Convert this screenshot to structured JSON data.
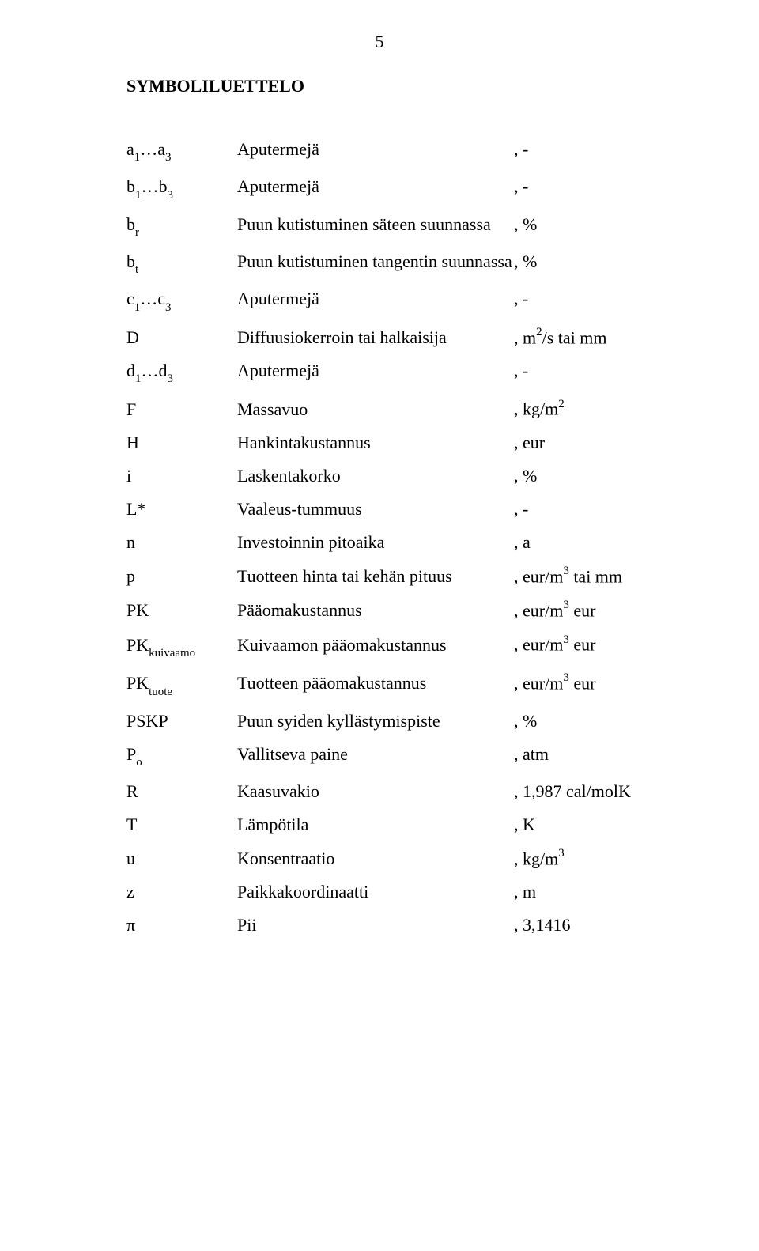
{
  "page_number": "5",
  "heading": "SYMBOLILUETTELO",
  "rows": [
    {
      "sym_pre": "a",
      "sym_sub1": "1",
      "sym_mid": "…a",
      "sym_sub2": "3",
      "sym_post": "",
      "desc": "Aputermejä",
      "unit_pre": ", -",
      "unit_sup": "",
      "unit_post": ""
    },
    {
      "sym_pre": "b",
      "sym_sub1": "1",
      "sym_mid": "…b",
      "sym_sub2": "3",
      "sym_post": "",
      "desc": "Aputermejä",
      "unit_pre": ", -",
      "unit_sup": "",
      "unit_post": ""
    },
    {
      "sym_pre": "b",
      "sym_sub1": "r",
      "sym_mid": "",
      "sym_sub2": "",
      "sym_post": "",
      "desc": "Puun kutistuminen säteen suunnassa",
      "unit_pre": ", %",
      "unit_sup": "",
      "unit_post": ""
    },
    {
      "sym_pre": "b",
      "sym_sub1": "t",
      "sym_mid": "",
      "sym_sub2": "",
      "sym_post": "",
      "desc": "Puun kutistuminen tangentin suunnassa",
      "unit_pre": ", %",
      "unit_sup": "",
      "unit_post": ""
    },
    {
      "sym_pre": "c",
      "sym_sub1": "1",
      "sym_mid": "…c",
      "sym_sub2": "3",
      "sym_post": "",
      "desc": "Aputermejä",
      "unit_pre": ", -",
      "unit_sup": "",
      "unit_post": ""
    },
    {
      "sym_pre": "D",
      "sym_sub1": "",
      "sym_mid": "",
      "sym_sub2": "",
      "sym_post": "",
      "desc": "Diffuusiokerroin tai halkaisija",
      "unit_pre": ", m",
      "unit_sup": "2",
      "unit_post": "/s tai mm"
    },
    {
      "sym_pre": "d",
      "sym_sub1": "1",
      "sym_mid": "…d",
      "sym_sub2": "3",
      "sym_post": "",
      "desc": "Aputermejä",
      "unit_pre": ", -",
      "unit_sup": "",
      "unit_post": ""
    },
    {
      "sym_pre": "F",
      "sym_sub1": "",
      "sym_mid": "",
      "sym_sub2": "",
      "sym_post": "",
      "desc": "Massavuo",
      "unit_pre": ", kg/m",
      "unit_sup": "2",
      "unit_post": ""
    },
    {
      "sym_pre": "H",
      "sym_sub1": "",
      "sym_mid": "",
      "sym_sub2": "",
      "sym_post": "",
      "desc": "Hankintakustannus",
      "unit_pre": ", eur",
      "unit_sup": "",
      "unit_post": ""
    },
    {
      "sym_pre": "i",
      "sym_sub1": "",
      "sym_mid": "",
      "sym_sub2": "",
      "sym_post": "",
      "desc": "Laskentakorko",
      "unit_pre": ", %",
      "unit_sup": "",
      "unit_post": ""
    },
    {
      "sym_pre": "L*",
      "sym_sub1": "",
      "sym_mid": "",
      "sym_sub2": "",
      "sym_post": "",
      "desc": "Vaaleus-tummuus",
      "unit_pre": ", -",
      "unit_sup": "",
      "unit_post": ""
    },
    {
      "sym_pre": "n",
      "sym_sub1": "",
      "sym_mid": "",
      "sym_sub2": "",
      "sym_post": "",
      "desc": "Investoinnin pitoaika",
      "unit_pre": ", a",
      "unit_sup": "",
      "unit_post": ""
    },
    {
      "sym_pre": "p",
      "sym_sub1": "",
      "sym_mid": "",
      "sym_sub2": "",
      "sym_post": "",
      "desc": "Tuotteen hinta tai kehän pituus",
      "unit_pre": ", eur/m",
      "unit_sup": "3",
      "unit_post": " tai mm"
    },
    {
      "sym_pre": "PK",
      "sym_sub1": "",
      "sym_mid": "",
      "sym_sub2": "",
      "sym_post": "",
      "desc": "Pääomakustannus",
      "unit_pre": ", eur/m",
      "unit_sup": "3",
      "unit_post": " eur"
    },
    {
      "sym_pre": "PK",
      "sym_sub1": "kuivaamo",
      "sym_mid": "",
      "sym_sub2": "",
      "sym_post": "",
      "desc": "Kuivaamon pääomakustannus",
      "unit_pre": ", eur/m",
      "unit_sup": "3",
      "unit_post": " eur"
    },
    {
      "sym_pre": "PK",
      "sym_sub1": "tuote",
      "sym_mid": "",
      "sym_sub2": "",
      "sym_post": "",
      "desc": "Tuotteen pääomakustannus",
      "unit_pre": ", eur/m",
      "unit_sup": "3",
      "unit_post": " eur"
    },
    {
      "sym_pre": "PSKP",
      "sym_sub1": "",
      "sym_mid": "",
      "sym_sub2": "",
      "sym_post": "",
      "desc": "Puun syiden kyllästymispiste",
      "unit_pre": ", %",
      "unit_sup": "",
      "unit_post": ""
    },
    {
      "sym_pre": "P",
      "sym_sub1": "o",
      "sym_mid": "",
      "sym_sub2": "",
      "sym_post": "",
      "desc": "Vallitseva paine",
      "unit_pre": ", atm",
      "unit_sup": "",
      "unit_post": ""
    },
    {
      "sym_pre": "R",
      "sym_sub1": "",
      "sym_mid": "",
      "sym_sub2": "",
      "sym_post": "",
      "desc": "Kaasuvakio",
      "unit_pre": ", 1,987 cal/molK",
      "unit_sup": "",
      "unit_post": ""
    },
    {
      "sym_pre": "T",
      "sym_sub1": "",
      "sym_mid": "",
      "sym_sub2": "",
      "sym_post": "",
      "desc": "Lämpötila",
      "unit_pre": ", K",
      "unit_sup": "",
      "unit_post": ""
    },
    {
      "sym_pre": "u",
      "sym_sub1": "",
      "sym_mid": "",
      "sym_sub2": "",
      "sym_post": "",
      "desc": "Konsentraatio",
      "unit_pre": ", kg/m",
      "unit_sup": "3",
      "unit_post": ""
    },
    {
      "sym_pre": "z",
      "sym_sub1": "",
      "sym_mid": "",
      "sym_sub2": "",
      "sym_post": "",
      "desc": "Paikkakoordinaatti",
      "unit_pre": ", m",
      "unit_sup": "",
      "unit_post": ""
    },
    {
      "sym_pre": "π",
      "sym_sub1": "",
      "sym_mid": "",
      "sym_sub2": "",
      "sym_post": "",
      "desc": "Pii",
      "unit_pre": ", 3,1416",
      "unit_sup": "",
      "unit_post": ""
    }
  ]
}
